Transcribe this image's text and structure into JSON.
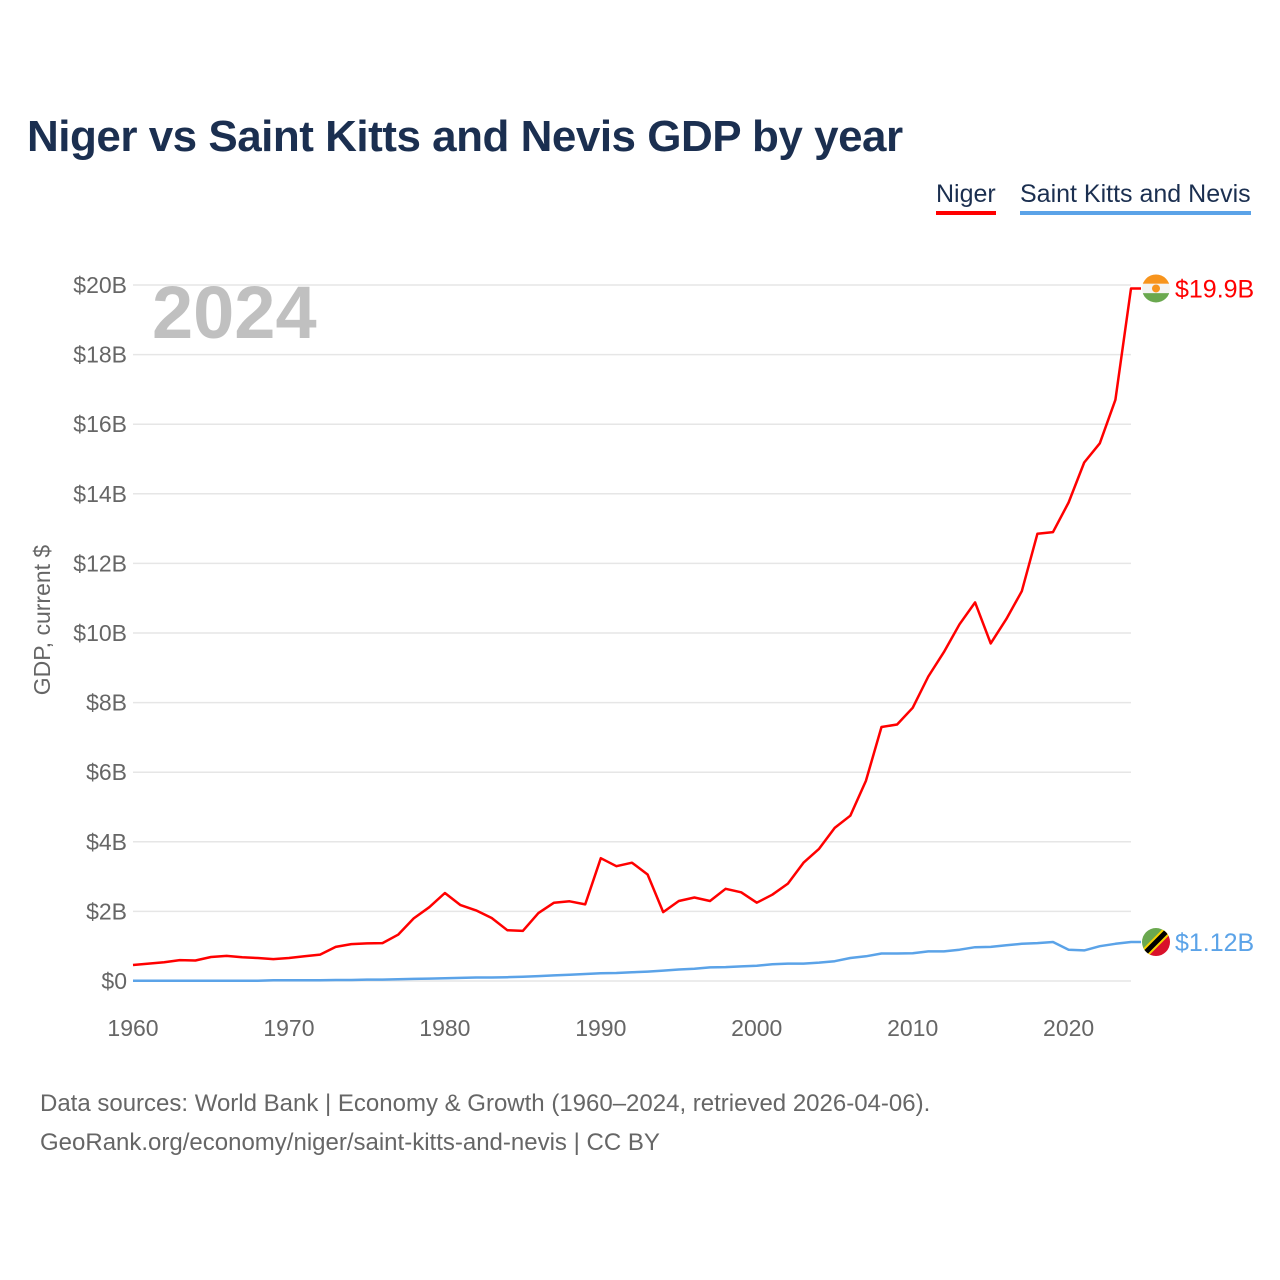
{
  "chart_data": {
    "type": "line",
    "title": "Niger vs Saint Kitts and Nevis GDP by year",
    "xlabel": "",
    "ylabel": "GDP, current $",
    "year_watermark": "2024",
    "xlim": [
      1960,
      2024
    ],
    "ylim": [
      0,
      20
    ],
    "x_ticks": [
      "1960",
      "1970",
      "1980",
      "1990",
      "2000",
      "2010",
      "2020"
    ],
    "y_ticks": [
      "$0",
      "$2B",
      "$4B",
      "$6B",
      "$8B",
      "$10B",
      "$12B",
      "$14B",
      "$16B",
      "$18B",
      "$20B"
    ],
    "grid": true,
    "legend_position": "top-right",
    "x_start": 1960,
    "series": [
      {
        "name": "Niger",
        "color": "#ff0000",
        "end_label": "$19.9B",
        "flag": "niger-flag",
        "values": [
          0.46,
          0.5,
          0.54,
          0.6,
          0.59,
          0.69,
          0.72,
          0.68,
          0.66,
          0.63,
          0.66,
          0.71,
          0.76,
          0.98,
          1.06,
          1.08,
          1.09,
          1.33,
          1.8,
          2.12,
          2.53,
          2.18,
          2.03,
          1.81,
          1.46,
          1.44,
          1.95,
          2.25,
          2.29,
          2.2,
          3.53,
          3.3,
          3.4,
          3.06,
          1.98,
          2.3,
          2.4,
          2.3,
          2.65,
          2.55,
          2.25,
          2.48,
          2.8,
          3.4,
          3.8,
          4.4,
          4.75,
          5.75,
          7.3,
          7.37,
          7.85,
          8.75,
          9.45,
          10.25,
          10.88,
          9.7,
          10.4,
          11.2,
          12.85,
          12.9,
          13.75,
          14.9,
          15.45,
          16.7,
          19.9
        ]
      },
      {
        "name": "Saint Kitts and Nevis",
        "color": "#5ba3e8",
        "end_label": "$1.12B",
        "flag": "saint-kitts-and-nevis-flag",
        "values": [
          0.01,
          0.01,
          0.01,
          0.01,
          0.01,
          0.01,
          0.01,
          0.01,
          0.01,
          0.02,
          0.02,
          0.02,
          0.02,
          0.03,
          0.03,
          0.04,
          0.04,
          0.05,
          0.06,
          0.07,
          0.08,
          0.09,
          0.1,
          0.1,
          0.11,
          0.12,
          0.14,
          0.16,
          0.18,
          0.2,
          0.22,
          0.23,
          0.25,
          0.27,
          0.3,
          0.33,
          0.35,
          0.39,
          0.4,
          0.42,
          0.44,
          0.48,
          0.5,
          0.5,
          0.53,
          0.57,
          0.66,
          0.71,
          0.79,
          0.79,
          0.8,
          0.85,
          0.85,
          0.9,
          0.97,
          0.98,
          1.03,
          1.07,
          1.09,
          1.12,
          0.9,
          0.88,
          1.0,
          1.07,
          1.12
        ]
      }
    ]
  },
  "legend": {
    "niger": "Niger",
    "skn": "Saint Kitts and Nevis"
  },
  "footer": {
    "line1": "Data sources: World Bank | Economy & Growth (1960–2024, retrieved 2026-04-06).",
    "line2": "GeoRank.org/economy/niger/saint-kitts-and-nevis | CC BY"
  }
}
